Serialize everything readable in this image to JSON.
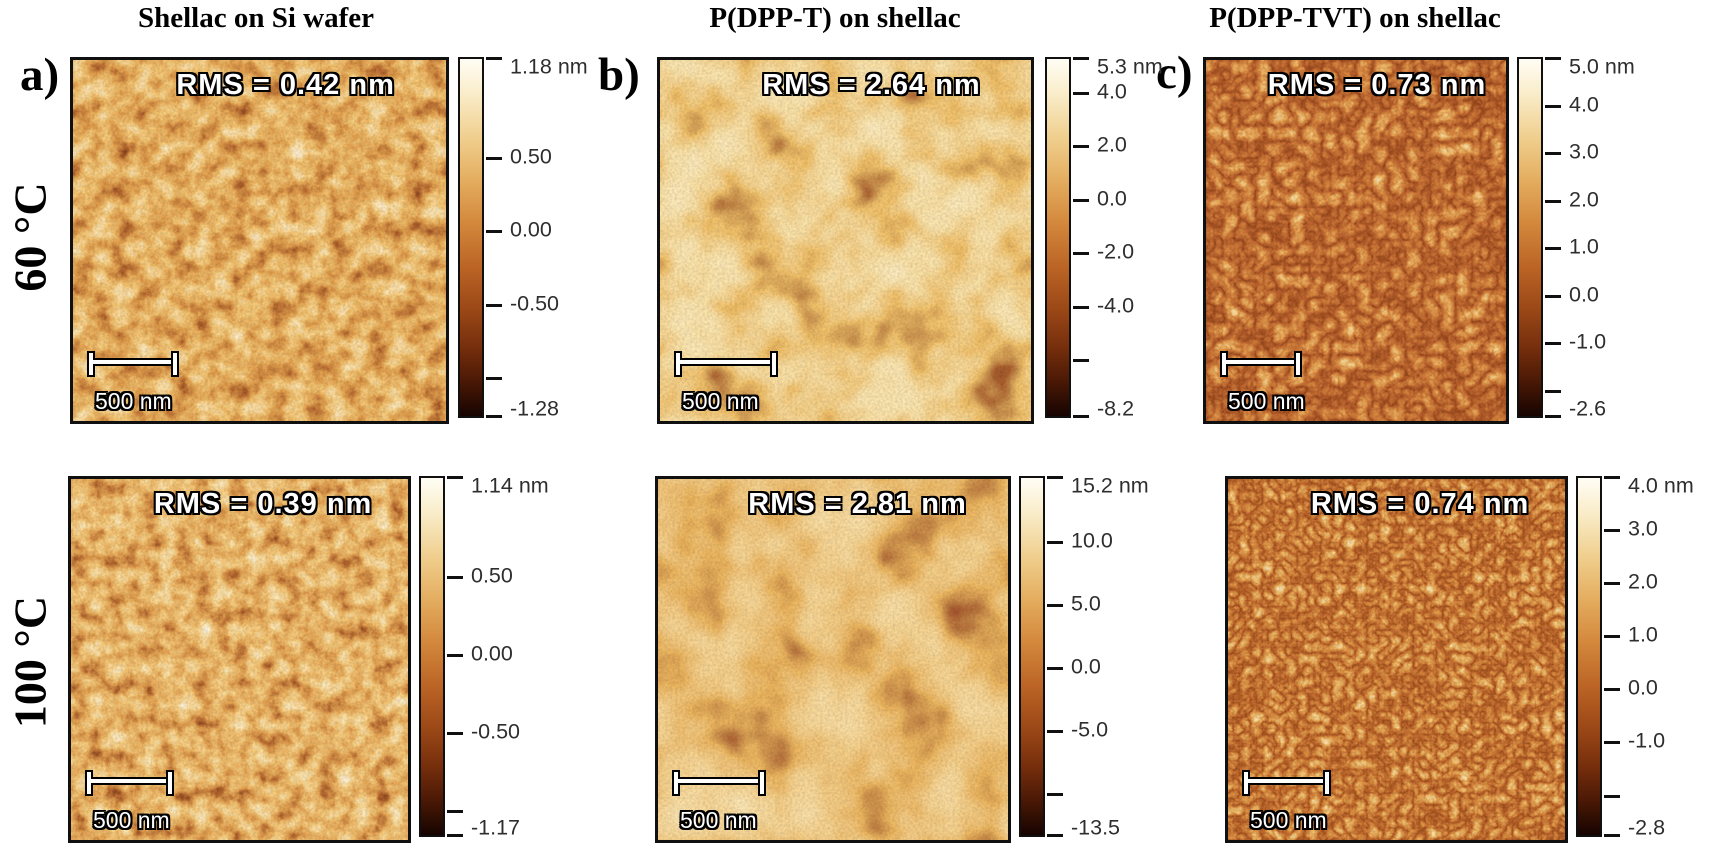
{
  "figure": {
    "column_titles": [
      "Shellac on Si wafer",
      "P(DPP-T) on shellac",
      "P(DPP-TVT) on shellac"
    ],
    "row_labels": [
      "60 °C",
      "100 °C"
    ],
    "panel_letters": [
      "a)",
      "b)",
      "c)"
    ]
  },
  "panels": [
    {
      "panel": "a",
      "temperature": "60 °C",
      "sample": "Shellac on Si wafer",
      "rms_label": "RMS = 0.42 nm",
      "scale_bar_label": "500 nm",
      "colorbar": {
        "unit": "nm",
        "vmax": 1.18,
        "vmin": -1.28,
        "ticks": [
          {
            "label": "1.18 nm",
            "value": 1.18
          },
          {
            "label": "0.50",
            "value": 0.5
          },
          {
            "label": "0.00",
            "value": 0.0
          },
          {
            "label": "-0.50",
            "value": -0.5
          },
          {
            "label": "",
            "value": -1.0
          },
          {
            "label": "-1.28",
            "value": -1.28
          }
        ]
      }
    },
    {
      "panel": "b",
      "temperature": "60 °C",
      "sample": "P(DPP-T) on shellac",
      "rms_label": "RMS = 2.64 nm",
      "scale_bar_label": "500 nm",
      "colorbar": {
        "unit": "nm",
        "vmax": 5.3,
        "vmin": -8.2,
        "ticks": [
          {
            "label": "5.3 nm",
            "value": 5.3
          },
          {
            "label": "4.0",
            "value": 4.0
          },
          {
            "label": "2.0",
            "value": 2.0
          },
          {
            "label": "0.0",
            "value": 0.0
          },
          {
            "label": "-2.0",
            "value": -2.0
          },
          {
            "label": "-4.0",
            "value": -4.0
          },
          {
            "label": "",
            "value": -6.0
          },
          {
            "label": "-8.2",
            "value": -8.2
          }
        ]
      }
    },
    {
      "panel": "c",
      "temperature": "60 °C",
      "sample": "P(DPP-TVT) on shellac",
      "rms_label": "RMS = 0.73 nm",
      "scale_bar_label": "500 nm",
      "colorbar": {
        "unit": "nm",
        "vmax": 5.0,
        "vmin": -2.6,
        "ticks": [
          {
            "label": "5.0 nm",
            "value": 5.0
          },
          {
            "label": "4.0",
            "value": 4.0
          },
          {
            "label": "3.0",
            "value": 3.0
          },
          {
            "label": "2.0",
            "value": 2.0
          },
          {
            "label": "1.0",
            "value": 1.0
          },
          {
            "label": "0.0",
            "value": 0.0
          },
          {
            "label": "-1.0",
            "value": -1.0
          },
          {
            "label": "",
            "value": -2.0
          },
          {
            "label": "-2.6",
            "value": -2.6
          }
        ]
      }
    },
    {
      "panel": "a",
      "temperature": "100 °C",
      "sample": "Shellac on Si wafer",
      "rms_label": "RMS = 0.39 nm",
      "scale_bar_label": "500 nm",
      "colorbar": {
        "unit": "nm",
        "vmax": 1.14,
        "vmin": -1.17,
        "ticks": [
          {
            "label": "1.14 nm",
            "value": 1.14
          },
          {
            "label": "0.50",
            "value": 0.5
          },
          {
            "label": "0.00",
            "value": 0.0
          },
          {
            "label": "-0.50",
            "value": -0.5
          },
          {
            "label": "",
            "value": -1.0
          },
          {
            "label": "-1.17",
            "value": -1.17
          }
        ]
      }
    },
    {
      "panel": "b",
      "temperature": "100 °C",
      "sample": "P(DPP-T) on shellac",
      "rms_label": "RMS = 2.81 nm",
      "scale_bar_label": "500 nm",
      "colorbar": {
        "unit": "nm",
        "vmax": 15.2,
        "vmin": -13.5,
        "ticks": [
          {
            "label": "15.2 nm",
            "value": 15.2
          },
          {
            "label": "10.0",
            "value": 10.0
          },
          {
            "label": "5.0",
            "value": 5.0
          },
          {
            "label": "0.0",
            "value": 0.0
          },
          {
            "label": "-5.0",
            "value": -5.0
          },
          {
            "label": "",
            "value": -10.0
          },
          {
            "label": "-13.5",
            "value": -13.5
          }
        ]
      }
    },
    {
      "panel": "c",
      "temperature": "100 °C",
      "sample": "P(DPP-TVT) on shellac",
      "rms_label": "RMS = 0.74 nm",
      "scale_bar_label": "500 nm",
      "colorbar": {
        "unit": "nm",
        "vmax": 4.0,
        "vmin": -2.8,
        "ticks": [
          {
            "label": "4.0 nm",
            "value": 4.0
          },
          {
            "label": "3.0",
            "value": 3.0
          },
          {
            "label": "2.0",
            "value": 2.0
          },
          {
            "label": "1.0",
            "value": 1.0
          },
          {
            "label": "0.0",
            "value": 0.0
          },
          {
            "label": "-1.0",
            "value": -1.0
          },
          {
            "label": "",
            "value": -2.0
          },
          {
            "label": "-2.8",
            "value": -2.8
          }
        ]
      }
    }
  ],
  "colors": {
    "background": "#ffffff",
    "text": "#000000",
    "tick_label": "#2e2e2e",
    "scalebar": "#ffffff",
    "outline": "#000000",
    "colormap": [
      "#160401",
      "#471705",
      "#752e0c",
      "#9c4817",
      "#bc6526",
      "#d3883c",
      "#e4ad5f",
      "#f0cf8e",
      "#f9ecc8",
      "#fffdf5"
    ]
  }
}
